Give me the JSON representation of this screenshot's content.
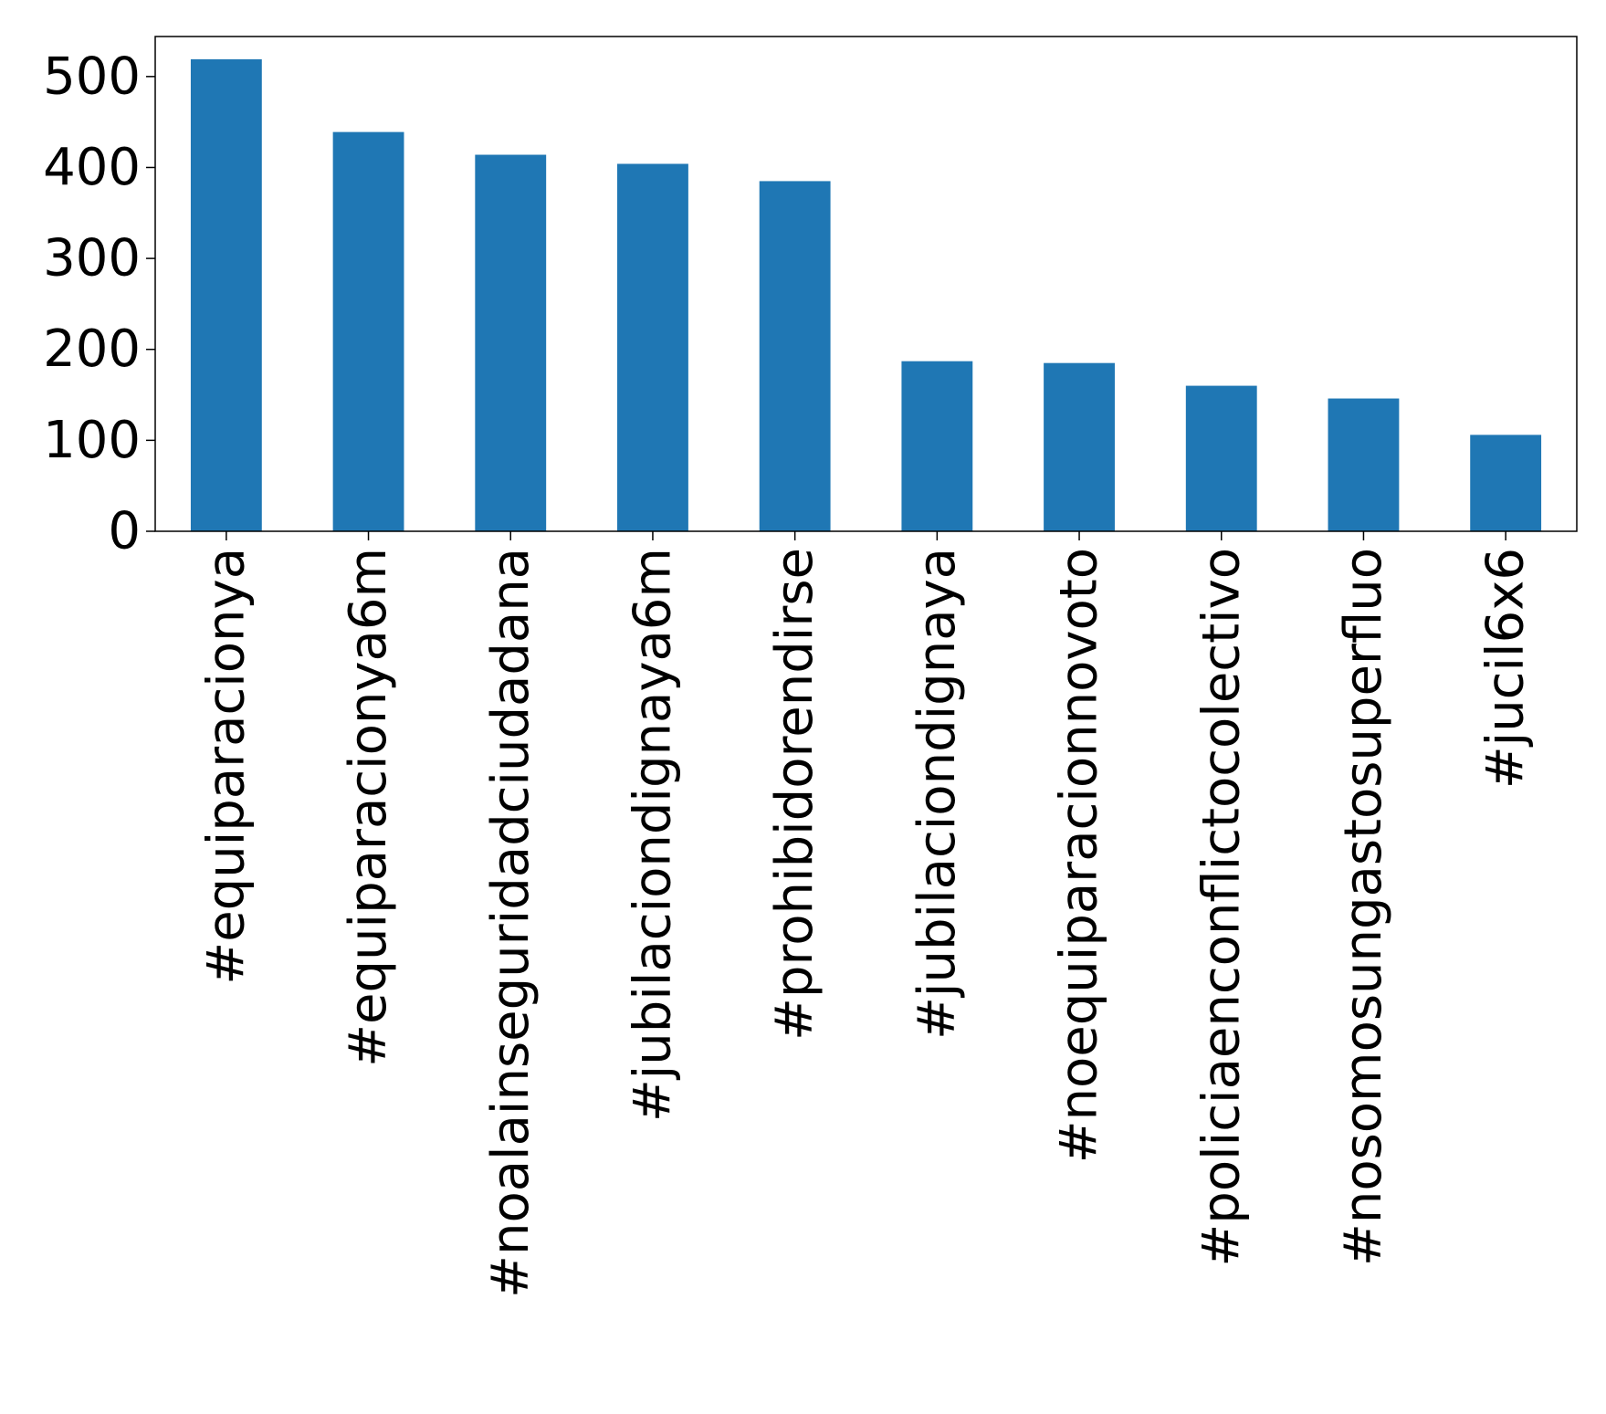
{
  "chart_data": {
    "type": "bar",
    "title": "",
    "xlabel": "",
    "ylabel": "",
    "categories": [
      "#equiparacionya",
      "#equiparacionya6m",
      "#noalainseguridadciudadana",
      "#jubilaciondignaya6m",
      "#prohibidorendirse",
      "#jubilaciondignaya",
      "#noequiparacionnovoto",
      "#policiaenconflictocolectivo",
      "#nosomosungastosuperfluo",
      "#jucil6x6"
    ],
    "values": [
      519,
      439,
      414,
      404,
      385,
      187,
      185,
      160,
      146,
      106
    ],
    "ylim": [
      0,
      544
    ],
    "yticks": [
      0,
      100,
      200,
      300,
      400,
      500
    ],
    "bar_color": "#1f77b4",
    "grid": false,
    "legend": "none"
  }
}
